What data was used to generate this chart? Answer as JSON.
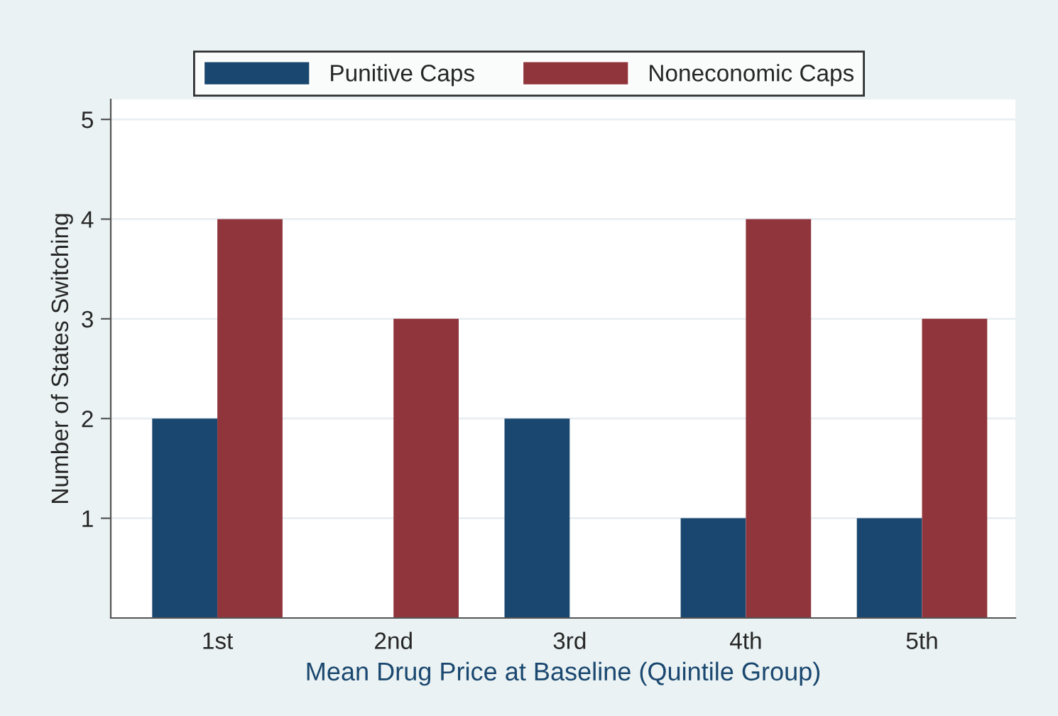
{
  "chart_data": {
    "type": "bar",
    "xlabel": "Mean Drug Price at Baseline (Quintile Group)",
    "ylabel": "Number of States Switching",
    "categories": [
      "1st",
      "2nd",
      "3rd",
      "4th",
      "5th"
    ],
    "series": [
      {
        "name": "Punitive Caps",
        "color": "#1a476f",
        "values": [
          2,
          0,
          2,
          1,
          1
        ]
      },
      {
        "name": "Noneconomic Caps",
        "color": "#90353b",
        "values": [
          4,
          3,
          0,
          4,
          3
        ]
      }
    ],
    "ylim": [
      0,
      5.2
    ],
    "yticks": [
      1,
      2,
      3,
      4,
      5
    ],
    "grid": "y",
    "legend": "top"
  }
}
